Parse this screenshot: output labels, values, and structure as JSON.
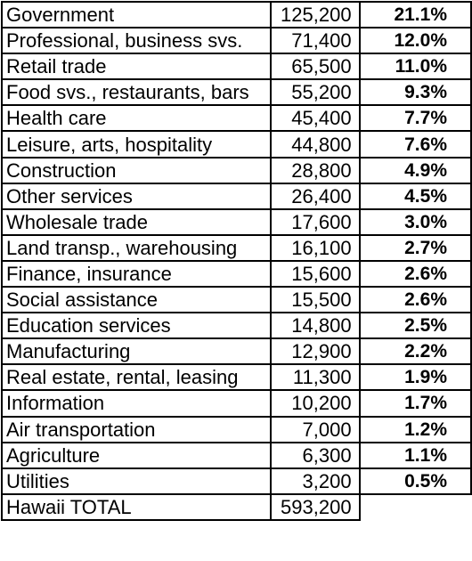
{
  "rows": [
    {
      "industry": "Government",
      "jobs": "125,200",
      "share": "21.1%"
    },
    {
      "industry": "Professional, business svs.",
      "jobs": "71,400",
      "share": "12.0%"
    },
    {
      "industry": "Retail trade",
      "jobs": "65,500",
      "share": "11.0%"
    },
    {
      "industry": "Food svs., restaurants, bars",
      "jobs": "55,200",
      "share": "9.3%"
    },
    {
      "industry": "Health care",
      "jobs": "45,400",
      "share": "7.7%"
    },
    {
      "industry": "Leisure, arts, hospitality",
      "jobs": "44,800",
      "share": "7.6%"
    },
    {
      "industry": "Construction",
      "jobs": "28,800",
      "share": "4.9%"
    },
    {
      "industry": "Other services",
      "jobs": "26,400",
      "share": "4.5%"
    },
    {
      "industry": "Wholesale trade",
      "jobs": "17,600",
      "share": "3.0%"
    },
    {
      "industry": "Land transp., warehousing",
      "jobs": "16,100",
      "share": "2.7%"
    },
    {
      "industry": "Finance, insurance",
      "jobs": "15,600",
      "share": "2.6%"
    },
    {
      "industry": "Social assistance",
      "jobs": "15,500",
      "share": "2.6%"
    },
    {
      "industry": "Education services",
      "jobs": "14,800",
      "share": "2.5%"
    },
    {
      "industry": "Manufacturing",
      "jobs": "12,900",
      "share": "2.2%"
    },
    {
      "industry": "Real estate, rental, leasing",
      "jobs": "11,300",
      "share": "1.9%"
    },
    {
      "industry": "Information",
      "jobs": "10,200",
      "share": "1.7%"
    },
    {
      "industry": "Air transportation",
      "jobs": "7,000",
      "share": "1.2%"
    },
    {
      "industry": "Agriculture",
      "jobs": "6,300",
      "share": "1.1%"
    },
    {
      "industry": "Utilities",
      "jobs": "3,200",
      "share": "0.5%"
    }
  ],
  "total": {
    "label": "Hawaii TOTAL",
    "jobs": "593,200"
  }
}
